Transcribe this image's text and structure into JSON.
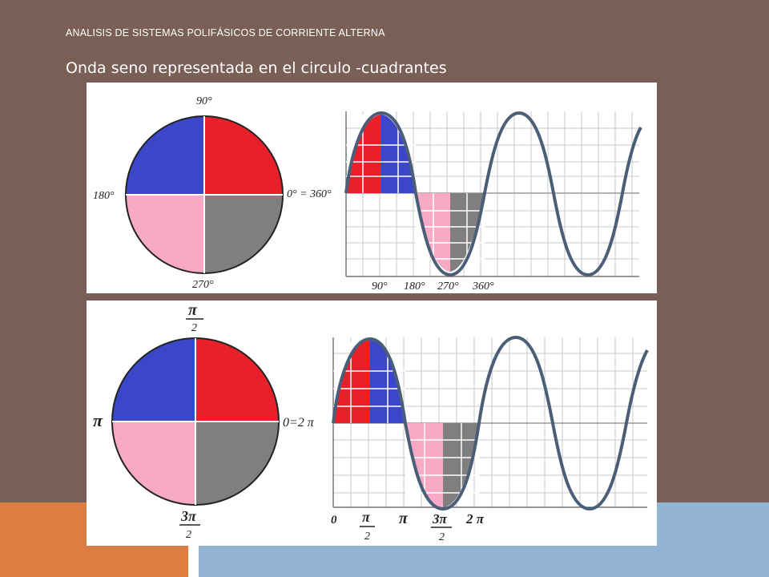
{
  "header": {
    "subtitle": "ANALISIS DE SISTEMAS POLIFÁSICOS DE CORRIENTE ALTERNA",
    "title": "Onda seno representada en el circulo -cuadrantes"
  },
  "colors": {
    "background": "#7a5f56",
    "quadrant_1": "#e8202a",
    "quadrant_2": "#3b47c8",
    "quadrant_3": "#f7a9c6",
    "quadrant_4": "#7f7f7f",
    "wave": "#4a5f77",
    "accent_orange": "#dc7e42",
    "accent_blue": "#93b5d3"
  },
  "degrees_panel": {
    "circle_labels": {
      "top": "90°",
      "left": "180°",
      "right": "0° = 360°",
      "bottom": "270°"
    },
    "axis_labels": [
      "90°",
      "180°",
      "270°",
      "360°"
    ]
  },
  "radians_panel": {
    "circle_labels": {
      "top_num": "π",
      "top_den": "2",
      "left": "π",
      "right": "0=2 π",
      "bottom_num": "3π",
      "bottom_den": "2"
    },
    "axis_labels": {
      "zero": "0",
      "half_pi_num": "π",
      "half_pi_den": "2",
      "pi": "π",
      "three_half_pi_num": "3π",
      "three_half_pi_den": "2",
      "two_pi": "2 π"
    }
  }
}
